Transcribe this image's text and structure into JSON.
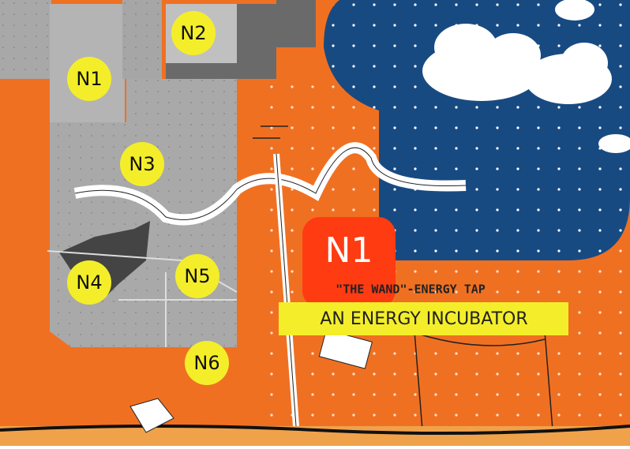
{
  "map_labels": [
    "N1",
    "N2",
    "N3",
    "N4",
    "N5",
    "N6"
  ],
  "feature": {
    "id": "N1",
    "subtitle": "\"THE WAND\"-ENERGY TAP",
    "title": "AN ENERGY INCUBATOR"
  }
}
